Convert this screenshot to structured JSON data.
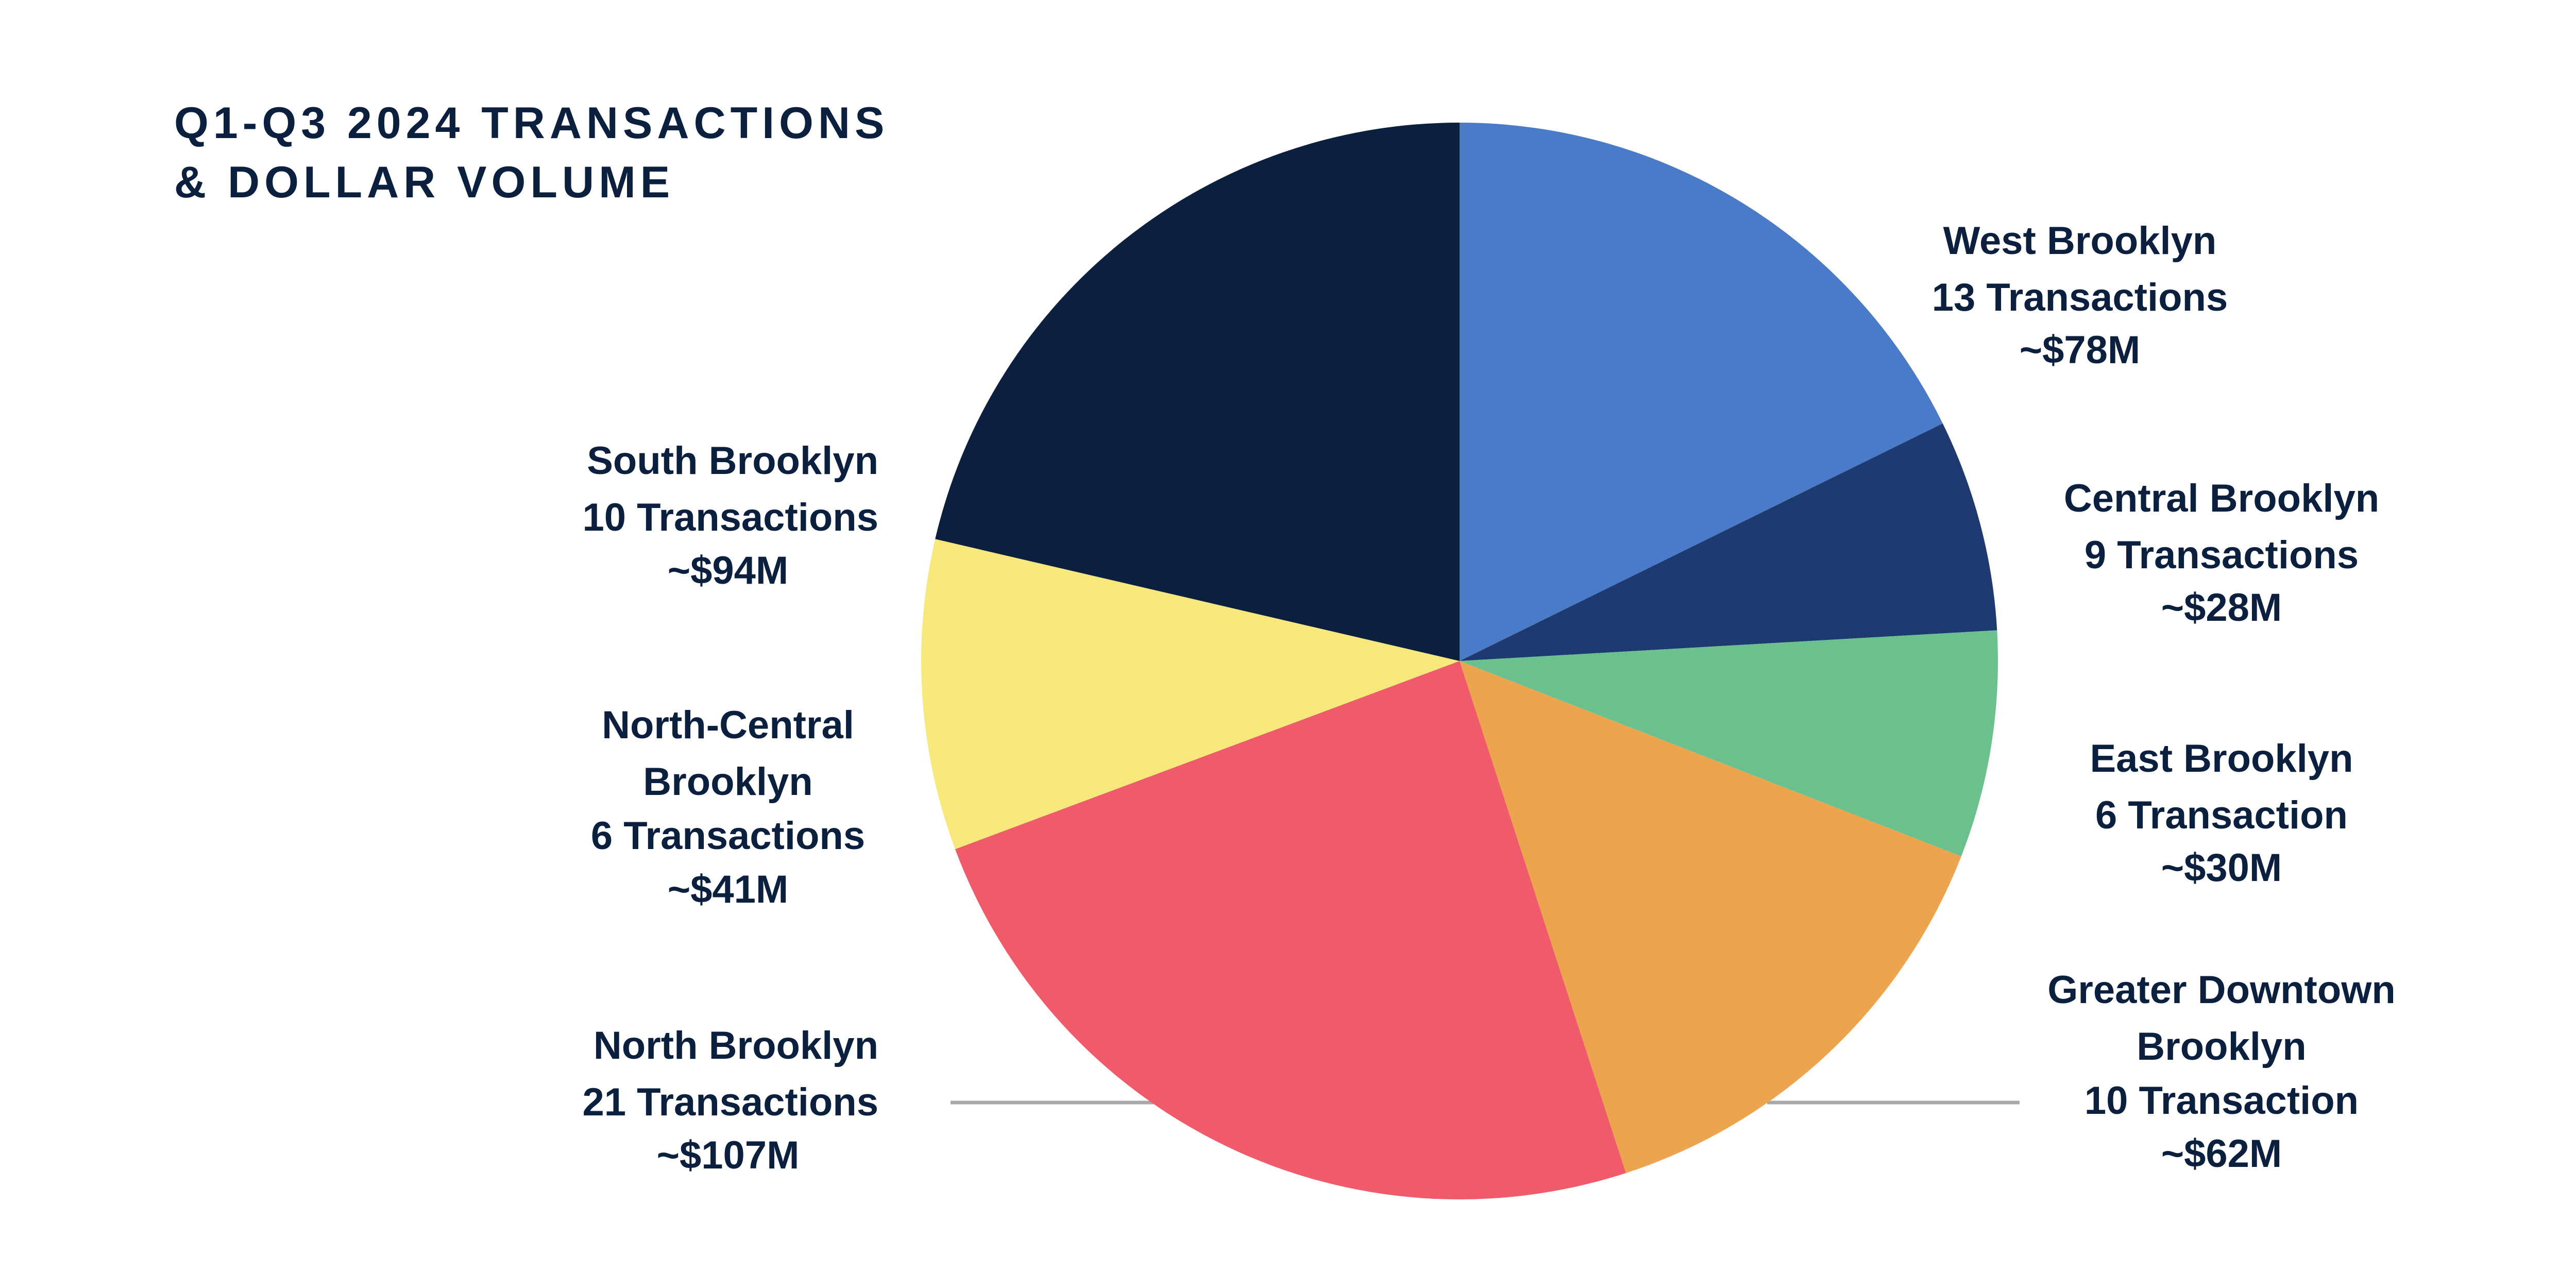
{
  "chart_data": {
    "type": "pie",
    "title_lines": [
      "Q1-Q3 2024 TRANSACTIONS",
      "& DOLLAR VOLUME"
    ],
    "slices": [
      {
        "name": "West Brooklyn",
        "transactions": "13 Transactions",
        "volume": "~$78M",
        "value": 78,
        "color": "#4a7bc8"
      },
      {
        "name": "Central Brooklyn",
        "transactions": "9 Transactions",
        "volume": "~$28M",
        "value": 28,
        "color": "#1f3a70"
      },
      {
        "name": "East Brooklyn",
        "transactions": "6 Transaction",
        "volume": "~$30M",
        "value": 30,
        "color": "#6bc18e"
      },
      {
        "name": "Greater Downtown Brooklyn",
        "transactions": "10 Transaction",
        "volume": "~$62M",
        "value": 62,
        "color": "#eca44f"
      },
      {
        "name": "North Brooklyn",
        "transactions": "21 Transactions",
        "volume": "~$107M",
        "value": 107,
        "color": "#ef5b6a"
      },
      {
        "name": "North-Central Brooklyn",
        "transactions": "6 Transactions",
        "volume": "~$41M",
        "value": 41,
        "color": "#f6e87a"
      },
      {
        "name": "South Brooklyn",
        "transactions": "10 Transactions",
        "volume": "~$94M",
        "value": 94,
        "color": "#0b1f3f"
      }
    ]
  }
}
